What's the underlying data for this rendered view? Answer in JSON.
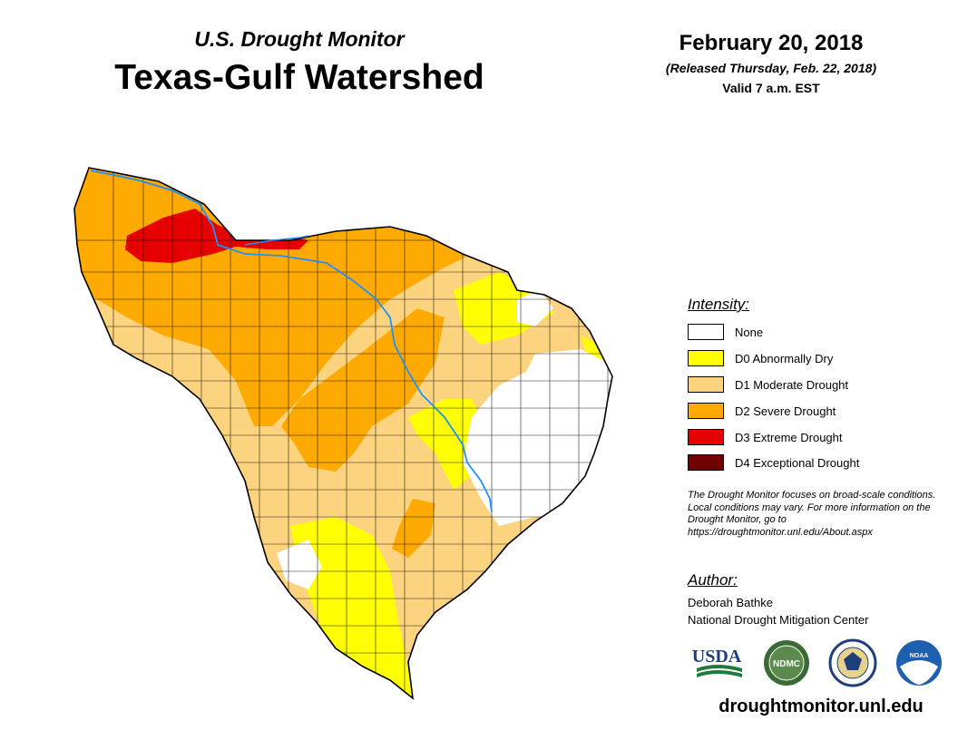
{
  "header": {
    "subtitle": "U.S. Drought Monitor",
    "title": "Texas-Gulf Watershed",
    "date": "February 20, 2018",
    "released": "(Released Thursday, Feb. 22, 2018)",
    "valid": "Valid 7 a.m. EST"
  },
  "legend": {
    "heading": "Intensity:",
    "items": [
      {
        "label": "None",
        "color": "#ffffff"
      },
      {
        "label": "D0 Abnormally Dry",
        "color": "#ffff00"
      },
      {
        "label": "D1 Moderate Drought",
        "color": "#fcd37f"
      },
      {
        "label": "D2 Severe Drought",
        "color": "#ffaa00"
      },
      {
        "label": "D3 Extreme Drought",
        "color": "#e60000"
      },
      {
        "label": "D4 Exceptional Drought",
        "color": "#730000"
      }
    ]
  },
  "disclaimer": "The Drought Monitor focuses on broad-scale conditions. Local conditions may vary. For more information on the Drought Monitor, go to https://droughtmonitor.unl.edu/About.aspx",
  "author": {
    "heading": "Author:",
    "name": "Deborah Bathke",
    "organization": "National Drought Mitigation Center"
  },
  "logos": {
    "usda": "USDA",
    "ndmc": "NDMC",
    "noaa": "NOAA"
  },
  "website": "droughtmonitor.unl.edu"
}
